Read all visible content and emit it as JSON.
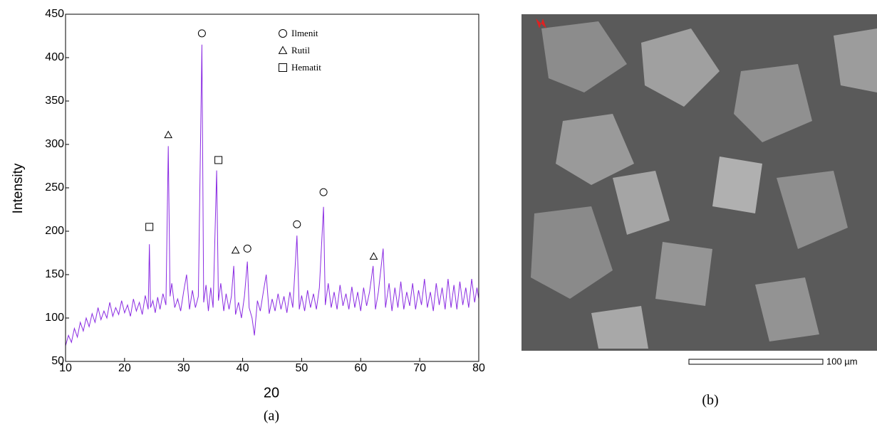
{
  "chart_data": {
    "type": "line",
    "x": [
      10,
      10.5,
      11,
      11.5,
      12,
      12.5,
      13,
      13.5,
      14,
      14.5,
      15,
      15.5,
      16,
      16.5,
      17,
      17.5,
      18,
      18.5,
      19,
      19.5,
      20,
      20.5,
      21,
      21.5,
      22,
      22.5,
      23,
      23.5,
      24,
      24.2,
      24.4,
      24.8,
      25.2,
      25.6,
      26,
      26.5,
      27,
      27.4,
      27.7,
      28,
      28.5,
      29,
      29.5,
      30,
      30.5,
      31,
      31.5,
      32,
      32.5,
      33.1,
      33.4,
      33.8,
      34.2,
      34.6,
      35,
      35.6,
      35.9,
      36.3,
      36.8,
      37.2,
      37.7,
      38.1,
      38.5,
      38.8,
      39.3,
      39.8,
      40.3,
      40.8,
      41.1,
      41.6,
      42,
      42.5,
      43,
      43.5,
      44,
      44.5,
      45,
      45.5,
      46,
      46.5,
      47,
      47.5,
      48,
      48.5,
      49.2,
      49.6,
      50,
      50.5,
      51,
      51.5,
      52,
      52.5,
      53,
      53.7,
      54,
      54.5,
      55,
      55.5,
      56,
      56.5,
      57,
      57.5,
      58,
      58.5,
      59,
      59.5,
      60,
      60.5,
      61,
      61.5,
      62.1,
      62.5,
      63,
      63.8,
      64.2,
      64.8,
      65.3,
      65.8,
      66.3,
      66.8,
      67.3,
      67.8,
      68.3,
      68.8,
      69.3,
      69.8,
      70.3,
      70.8,
      71.3,
      71.8,
      72.3,
      72.8,
      73.3,
      73.8,
      74.3,
      74.8,
      75.3,
      75.8,
      76.3,
      76.8,
      77.3,
      77.8,
      78.3,
      78.8,
      79.3,
      79.7,
      80
    ],
    "series": [
      {
        "color": "#8a2be2",
        "values": [
          68,
          80,
          72,
          88,
          78,
          95,
          85,
          100,
          90,
          105,
          95,
          112,
          98,
          108,
          100,
          118,
          102,
          112,
          104,
          120,
          106,
          115,
          102,
          122,
          108,
          118,
          104,
          126,
          110,
          185,
          112,
          120,
          106,
          124,
          110,
          128,
          115,
          298,
          125,
          140,
          112,
          122,
          108,
          130,
          150,
          110,
          132,
          112,
          125,
          415,
          118,
          138,
          108,
          135,
          112,
          270,
          120,
          140,
          108,
          128,
          110,
          125,
          160,
          104,
          118,
          100,
          125,
          165,
          112,
          100,
          80,
          120,
          108,
          130,
          150,
          105,
          122,
          108,
          128,
          110,
          125,
          106,
          130,
          112,
          195,
          110,
          126,
          108,
          132,
          112,
          128,
          110,
          135,
          228,
          115,
          140,
          112,
          130,
          110,
          138,
          114,
          128,
          110,
          136,
          112,
          130,
          108,
          135,
          114,
          130,
          160,
          110,
          130,
          180,
          112,
          140,
          108,
          135,
          112,
          142,
          110,
          130,
          114,
          140,
          110,
          132,
          115,
          145,
          112,
          130,
          108,
          140,
          115,
          135,
          110,
          145,
          112,
          138,
          110,
          142,
          115,
          135,
          112,
          145,
          118,
          135,
          122
        ]
      }
    ],
    "xlim": [
      10,
      80
    ],
    "xticks": [
      10,
      20,
      30,
      40,
      50,
      60,
      70,
      80
    ],
    "ylim": [
      50,
      450
    ],
    "yticks": [
      50,
      100,
      150,
      200,
      250,
      300,
      350,
      400,
      450
    ],
    "x_label": "20",
    "y_label": "Intensity",
    "caption": "(a)",
    "markers": [
      {
        "x": 33.1,
        "y": 428,
        "shape": "circle"
      },
      {
        "x": 27.4,
        "y": 311,
        "shape": "triangle"
      },
      {
        "x": 35.9,
        "y": 282,
        "shape": "square"
      },
      {
        "x": 24.2,
        "y": 205,
        "shape": "square"
      },
      {
        "x": 38.8,
        "y": 178,
        "shape": "triangle"
      },
      {
        "x": 40.8,
        "y": 180,
        "shape": "circle"
      },
      {
        "x": 49.2,
        "y": 208,
        "shape": "circle"
      },
      {
        "x": 53.7,
        "y": 245,
        "shape": "circle"
      },
      {
        "x": 62.2,
        "y": 171,
        "shape": "triangle"
      }
    ],
    "legend": [
      {
        "name": "Ilmenit",
        "shape": "circle"
      },
      {
        "name": "Rutil",
        "shape": "triangle"
      },
      {
        "name": "Hematit",
        "shape": "square"
      }
    ],
    "legend_position": "top"
  },
  "figure_b": {
    "caption": "(b)",
    "scale_bar": "100 µm"
  }
}
